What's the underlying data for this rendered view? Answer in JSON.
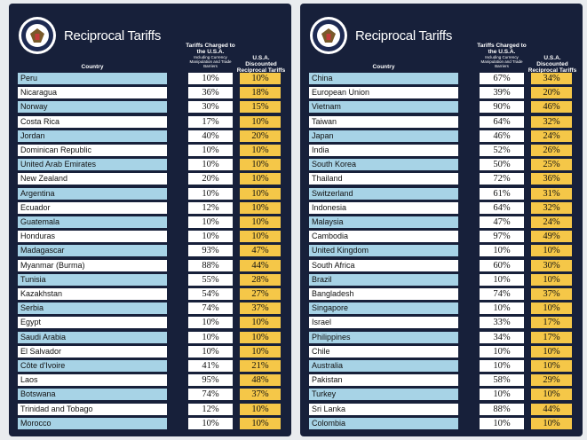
{
  "panels": [
    {
      "title": "Reciprocal Tariffs",
      "headers": {
        "country": "Country",
        "charged": "Tariffs Charged to the U.S.A.",
        "charged_note": "Including Currency Manipulation and Trade Barriers",
        "discounted": "U.S.A. Discounted Reciprocal Tariffs"
      },
      "rows": [
        [
          "Peru",
          "10%",
          "10%"
        ],
        [
          "Nicaragua",
          "36%",
          "18%"
        ],
        [
          "Norway",
          "30%",
          "15%"
        ],
        [
          "Costa Rica",
          "17%",
          "10%"
        ],
        [
          "Jordan",
          "40%",
          "20%"
        ],
        [
          "Dominican Republic",
          "10%",
          "10%"
        ],
        [
          "United Arab Emirates",
          "10%",
          "10%"
        ],
        [
          "New Zealand",
          "20%",
          "10%"
        ],
        [
          "Argentina",
          "10%",
          "10%"
        ],
        [
          "Ecuador",
          "12%",
          "10%"
        ],
        [
          "Guatemala",
          "10%",
          "10%"
        ],
        [
          "Honduras",
          "10%",
          "10%"
        ],
        [
          "Madagascar",
          "93%",
          "47%"
        ],
        [
          "Myanmar (Burma)",
          "88%",
          "44%"
        ],
        [
          "Tunisia",
          "55%",
          "28%"
        ],
        [
          "Kazakhstan",
          "54%",
          "27%"
        ],
        [
          "Serbia",
          "74%",
          "37%"
        ],
        [
          "Egypt",
          "10%",
          "10%"
        ],
        [
          "Saudi Arabia",
          "10%",
          "10%"
        ],
        [
          "El Salvador",
          "10%",
          "10%"
        ],
        [
          "Côte d'Ivoire",
          "41%",
          "21%"
        ],
        [
          "Laos",
          "95%",
          "48%"
        ],
        [
          "Botswana",
          "74%",
          "37%"
        ],
        [
          "Trinidad and Tobago",
          "12%",
          "10%"
        ],
        [
          "Morocco",
          "10%",
          "10%"
        ]
      ]
    },
    {
      "title": "Reciprocal Tariffs",
      "headers": {
        "country": "Country",
        "charged": "Tariffs Charged to the U.S.A.",
        "charged_note": "Including Currency Manipulation and Trade Barriers",
        "discounted": "U.S.A. Discounted Reciprocal Tariffs"
      },
      "rows": [
        [
          "China",
          "67%",
          "34%"
        ],
        [
          "European Union",
          "39%",
          "20%"
        ],
        [
          "Vietnam",
          "90%",
          "46%"
        ],
        [
          "Taiwan",
          "64%",
          "32%"
        ],
        [
          "Japan",
          "46%",
          "24%"
        ],
        [
          "India",
          "52%",
          "26%"
        ],
        [
          "South Korea",
          "50%",
          "25%"
        ],
        [
          "Thailand",
          "72%",
          "36%"
        ],
        [
          "Switzerland",
          "61%",
          "31%"
        ],
        [
          "Indonesia",
          "64%",
          "32%"
        ],
        [
          "Malaysia",
          "47%",
          "24%"
        ],
        [
          "Cambodia",
          "97%",
          "49%"
        ],
        [
          "United Kingdom",
          "10%",
          "10%"
        ],
        [
          "South Africa",
          "60%",
          "30%"
        ],
        [
          "Brazil",
          "10%",
          "10%"
        ],
        [
          "Bangladesh",
          "74%",
          "37%"
        ],
        [
          "Singapore",
          "10%",
          "10%"
        ],
        [
          "Israel",
          "33%",
          "17%"
        ],
        [
          "Philippines",
          "34%",
          "17%"
        ],
        [
          "Chile",
          "10%",
          "10%"
        ],
        [
          "Australia",
          "10%",
          "10%"
        ],
        [
          "Pakistan",
          "58%",
          "29%"
        ],
        [
          "Turkey",
          "10%",
          "10%"
        ],
        [
          "Sri Lanka",
          "88%",
          "44%"
        ],
        [
          "Colombia",
          "10%",
          "10%"
        ]
      ]
    }
  ]
}
